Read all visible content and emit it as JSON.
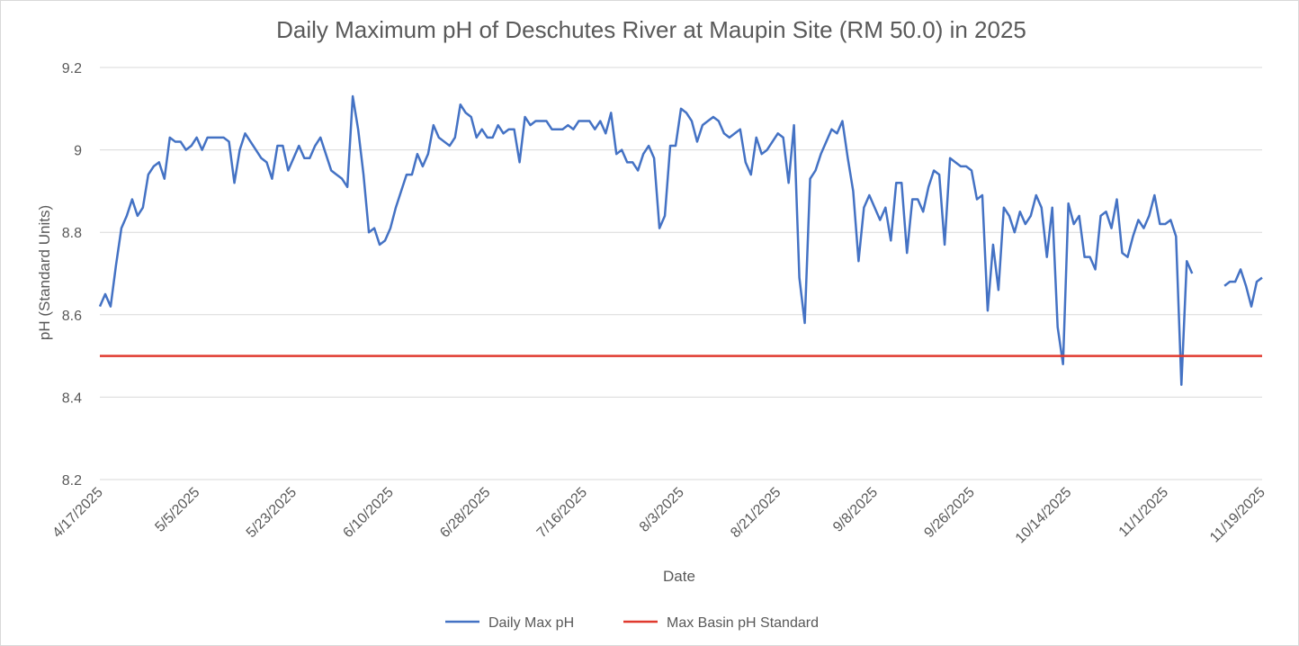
{
  "chart_data": {
    "type": "line",
    "title": "Daily Maximum pH of Deschutes River at Maupin Site (RM 50.0) in 2025",
    "xlabel": "Date",
    "ylabel": "pH (Standard Units)",
    "ylim": [
      8.2,
      9.2
    ],
    "yticks": [
      "8.2",
      "8.4",
      "8.6",
      "8.8",
      "9",
      "9.2"
    ],
    "xlim": [
      "4/17/2025",
      "11/19/2025"
    ],
    "xticks": [
      "4/17/2025",
      "5/5/2025",
      "5/23/2025",
      "6/10/2025",
      "6/28/2025",
      "7/16/2025",
      "8/3/2025",
      "8/21/2025",
      "9/8/2025",
      "9/26/2025",
      "10/14/2025",
      "11/1/2025",
      "11/19/2025"
    ],
    "grid": true,
    "legend_position": "bottom",
    "series": [
      {
        "name": "Daily Max pH",
        "color": "#4472c4",
        "segments": [
          {
            "start_date": "4/17/2025",
            "values": [
              8.62,
              8.65,
              8.62,
              8.72,
              8.81,
              8.84,
              8.88,
              8.84,
              8.86,
              8.94,
              8.96,
              8.97,
              8.93,
              9.03,
              9.02,
              9.02,
              9.0,
              9.01,
              9.03,
              9.0,
              9.03,
              9.03,
              9.03,
              9.03,
              9.02,
              8.92,
              9.0,
              9.04,
              9.02,
              9.0,
              8.98,
              8.97,
              8.93,
              9.01,
              9.01,
              8.95,
              8.98,
              9.01,
              8.98,
              8.98,
              9.01,
              9.03,
              8.99,
              8.95,
              8.94,
              8.93,
              8.91,
              9.13,
              9.05,
              8.94,
              8.8,
              8.81,
              8.77,
              8.78,
              8.81,
              8.86,
              8.9,
              8.94,
              8.94,
              8.99,
              8.96,
              8.99,
              9.06,
              9.03,
              9.02,
              9.01,
              9.03,
              9.11,
              9.09,
              9.08,
              9.03,
              9.05,
              9.03,
              9.03,
              9.06,
              9.04,
              9.05,
              9.05,
              8.97,
              9.08,
              9.06,
              9.07,
              9.07,
              9.07,
              9.05,
              9.05,
              9.05,
              9.06,
              9.05,
              9.07,
              9.07,
              9.07,
              9.05,
              9.07,
              9.04,
              9.09,
              8.99,
              9.0,
              8.97,
              8.97,
              8.95,
              8.99,
              9.01,
              8.98,
              8.81,
              8.84,
              9.01,
              9.01,
              9.1,
              9.09,
              9.07,
              9.02,
              9.06,
              9.07,
              9.08,
              9.07,
              9.04,
              9.03,
              9.04,
              9.05,
              8.97,
              8.94,
              9.03,
              8.99,
              9.0,
              9.02,
              9.04,
              9.03,
              8.92,
              9.06,
              8.69,
              8.58,
              8.93,
              8.95,
              8.99,
              9.02,
              9.05,
              9.04,
              9.07,
              8.98,
              8.9,
              8.73,
              8.86,
              8.89,
              8.86,
              8.83,
              8.86,
              8.78,
              8.92,
              8.92,
              8.75,
              8.88,
              8.88,
              8.85,
              8.91,
              8.95,
              8.94,
              8.77,
              8.98,
              8.97,
              8.96,
              8.96,
              8.95,
              8.88,
              8.89,
              8.61,
              8.77,
              8.66,
              8.86,
              8.84,
              8.8,
              8.85,
              8.82,
              8.84,
              8.89,
              8.86,
              8.74,
              8.86,
              8.57,
              8.48,
              8.87,
              8.82,
              8.84,
              8.74,
              8.74,
              8.71,
              8.84,
              8.85,
              8.81,
              8.88,
              8.75,
              8.74,
              8.79,
              8.83,
              8.81,
              8.84,
              8.89,
              8.82,
              8.82,
              8.83,
              8.79,
              8.43,
              8.73,
              8.7
            ]
          },
          {
            "start_date": "11/12/2025",
            "values": [
              8.67,
              8.68,
              8.68,
              8.71,
              8.67,
              8.62,
              8.68,
              8.69
            ]
          }
        ]
      },
      {
        "name": "Max Basin pH Standard",
        "color": "#e03a2f",
        "values": [
          8.5,
          8.5
        ]
      }
    ]
  }
}
